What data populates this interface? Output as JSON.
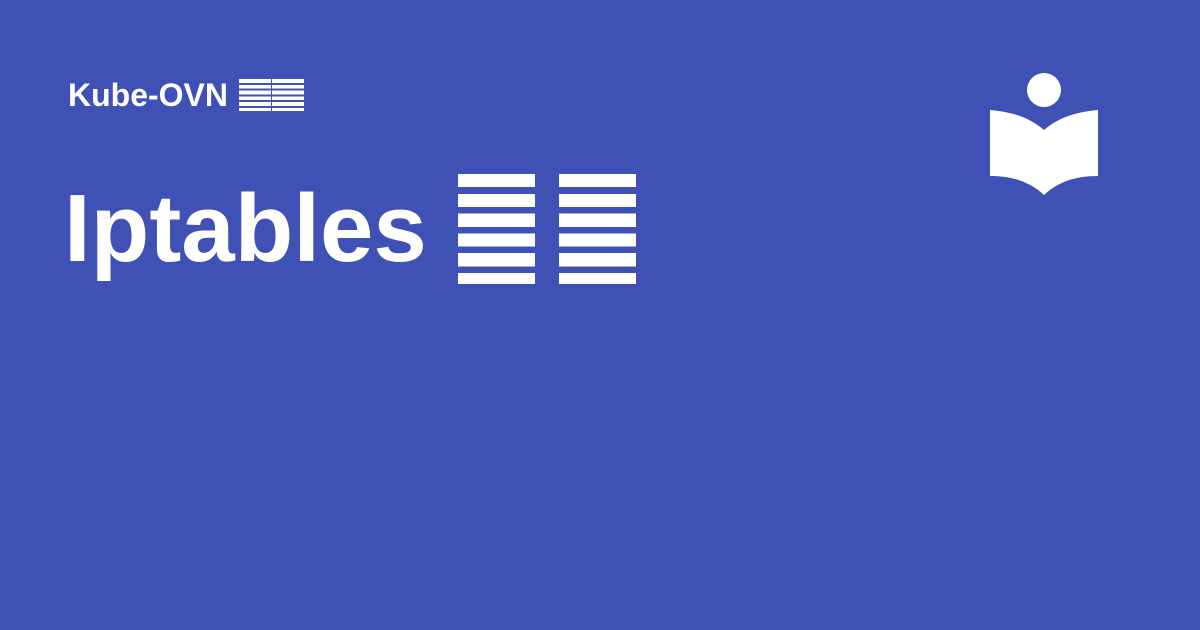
{
  "header": {
    "site_name": "Kube-OVN",
    "site_name_suffix_glyph_count": 2
  },
  "main": {
    "title": "Iptables",
    "title_suffix_glyph_count": 2
  },
  "logo": {
    "icon": "book-reader-icon"
  },
  "colors": {
    "background": "#3f51b5",
    "foreground": "#ffffff"
  }
}
